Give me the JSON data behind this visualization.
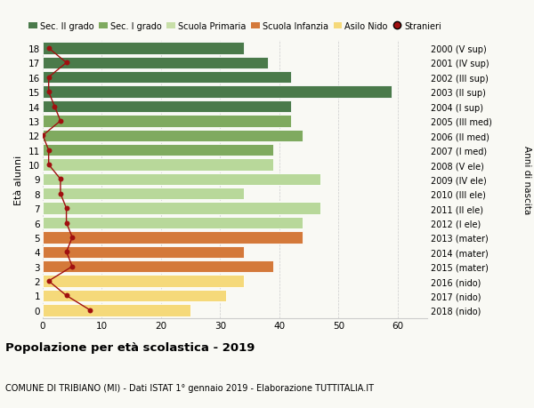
{
  "ages": [
    18,
    17,
    16,
    15,
    14,
    13,
    12,
    11,
    10,
    9,
    8,
    7,
    6,
    5,
    4,
    3,
    2,
    1,
    0
  ],
  "bar_values": [
    34,
    38,
    42,
    59,
    42,
    42,
    44,
    39,
    39,
    47,
    34,
    47,
    44,
    44,
    34,
    39,
    34,
    31,
    25
  ],
  "bar_colors": [
    "#4a7a4a",
    "#4a7a4a",
    "#4a7a4a",
    "#4a7a4a",
    "#4a7a4a",
    "#7faa5f",
    "#7faa5f",
    "#7faa5f",
    "#b8d89a",
    "#b8d89a",
    "#b8d89a",
    "#b8d89a",
    "#b8d89a",
    "#d4793a",
    "#d4793a",
    "#d4793a",
    "#f5d97a",
    "#f5d97a",
    "#f5d97a"
  ],
  "stranieri_x": [
    1,
    4,
    1,
    1,
    2,
    3,
    0,
    1,
    1,
    3,
    3,
    4,
    4,
    5,
    4,
    5,
    1,
    4,
    8
  ],
  "right_labels": [
    "2000 (V sup)",
    "2001 (IV sup)",
    "2002 (III sup)",
    "2003 (II sup)",
    "2004 (I sup)",
    "2005 (III med)",
    "2006 (II med)",
    "2007 (I med)",
    "2008 (V ele)",
    "2009 (IV ele)",
    "2010 (III ele)",
    "2011 (II ele)",
    "2012 (I ele)",
    "2013 (mater)",
    "2014 (mater)",
    "2015 (mater)",
    "2016 (nido)",
    "2017 (nido)",
    "2018 (nido)"
  ],
  "legend_labels": [
    "Sec. II grado",
    "Sec. I grado",
    "Scuola Primaria",
    "Scuola Infanzia",
    "Asilo Nido",
    "Stranieri"
  ],
  "legend_colors": [
    "#4a7a4a",
    "#7faa5f",
    "#c8dfa8",
    "#d4793a",
    "#f5d97a",
    "#a01010"
  ],
  "ylabel_left": "Età alunni",
  "ylabel_right": "Anni di nascita",
  "title": "Popolazione per età scolastica - 2019",
  "subtitle": "COMUNE DI TRIBIANO (MI) - Dati ISTAT 1° gennaio 2019 - Elaborazione TUTTITALIA.IT",
  "xlim": [
    0,
    65
  ],
  "ylim_min": -0.55,
  "ylim_max": 18.55,
  "background_color": "#f9f9f4",
  "grid_color": "#cccccc",
  "stranieri_color": "#a01010",
  "bar_edge_color": "#ffffff"
}
